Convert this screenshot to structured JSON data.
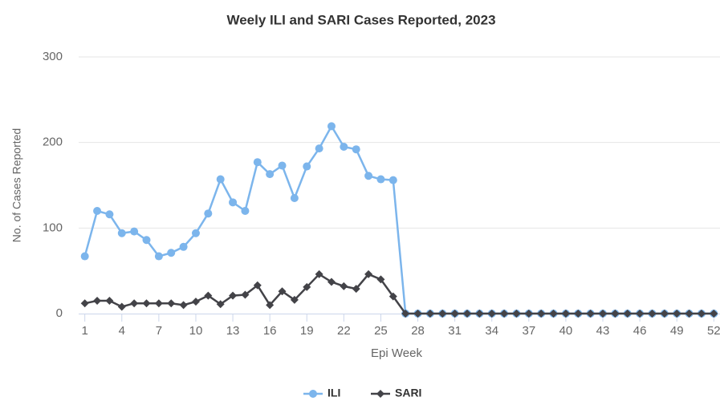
{
  "chart_data": {
    "type": "line",
    "title": "Weely ILI and SARI Cases Reported, 2023",
    "x_label": "Epi Week",
    "y_label": "No. of Cases Reported",
    "x": [
      1,
      2,
      3,
      4,
      5,
      6,
      7,
      8,
      9,
      10,
      11,
      12,
      13,
      14,
      15,
      16,
      17,
      18,
      19,
      20,
      21,
      22,
      23,
      24,
      25,
      26,
      27,
      28,
      29,
      30,
      31,
      32,
      33,
      34,
      35,
      36,
      37,
      38,
      39,
      40,
      41,
      42,
      43,
      44,
      45,
      46,
      47,
      48,
      49,
      50,
      51,
      52
    ],
    "series": [
      {
        "name": "ILI",
        "color": "#7cb5ec",
        "marker": "circle",
        "values": [
          67,
          120,
          116,
          94,
          96,
          86,
          67,
          71,
          78,
          94,
          117,
          157,
          130,
          120,
          177,
          163,
          173,
          135,
          172,
          193,
          219,
          195,
          192,
          161,
          157,
          156,
          0,
          0,
          0,
          0,
          0,
          0,
          0,
          0,
          0,
          0,
          0,
          0,
          0,
          0,
          0,
          0,
          0,
          0,
          0,
          0,
          0,
          0,
          0,
          0,
          0,
          0
        ]
      },
      {
        "name": "SARI",
        "color": "#434348",
        "marker": "diamond",
        "values": [
          12,
          15,
          15,
          8,
          12,
          12,
          12,
          12,
          10,
          14,
          21,
          11,
          21,
          22,
          33,
          10,
          26,
          16,
          31,
          46,
          37,
          32,
          29,
          46,
          40,
          20,
          0,
          0,
          0,
          0,
          0,
          0,
          0,
          0,
          0,
          0,
          0,
          0,
          0,
          0,
          0,
          0,
          0,
          0,
          0,
          0,
          0,
          0,
          0,
          0,
          0,
          0
        ]
      }
    ],
    "xlim": [
      0.5,
      52.5
    ],
    "xticks": [
      1,
      4,
      7,
      10,
      13,
      16,
      19,
      22,
      25,
      28,
      31,
      34,
      37,
      40,
      43,
      46,
      49,
      52
    ],
    "ylim": [
      0,
      300
    ],
    "yticks": [
      0,
      100,
      200,
      300
    ],
    "grid": true,
    "legend": "bottom"
  }
}
